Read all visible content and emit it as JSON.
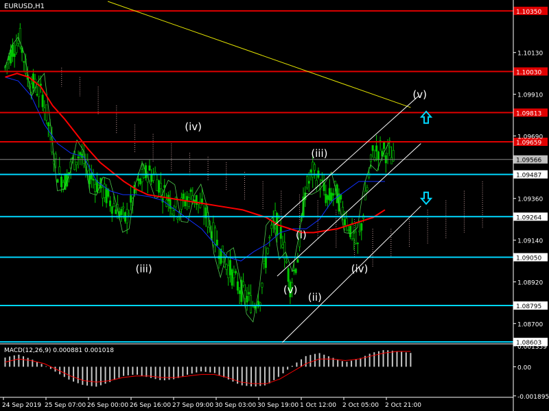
{
  "window": {
    "symbol_tf": "EURUSD,H1"
  },
  "colors": {
    "background": "#000000",
    "candle": "#00c800",
    "grid": "#ffffff",
    "resistance": "#e00000",
    "support": "#00d8ff",
    "price_label": "#c0c0c0",
    "trend_yellow": "#e6e600",
    "ma_red": "#ff0000",
    "ma_blue": "#1030ff",
    "ichimoku_cloud": "#c8a0a0",
    "macd_hist": "#c8c8c8",
    "macd_signal": "#ff0000"
  },
  "price_axis": {
    "min": 1.086,
    "max": 1.104,
    "ticks": [
      "1.10130",
      "1.09910",
      "1.09690",
      "1.09360",
      "1.09140",
      "1.08920",
      "1.08700"
    ]
  },
  "levels": {
    "resistance": [
      {
        "label": "1.10350",
        "price": 1.1035
      },
      {
        "label": "1.10030",
        "price": 1.1003
      },
      {
        "label": "1.09813",
        "price": 1.09813
      },
      {
        "label": "1.09659",
        "price": 1.09659
      }
    ],
    "support": [
      {
        "label": "1.09487",
        "price": 1.09487
      },
      {
        "label": "1.09264",
        "price": 1.09264
      },
      {
        "label": "1.09050",
        "price": 1.0905
      },
      {
        "label": "1.08795",
        "price": 1.08795
      },
      {
        "label": "1.08603",
        "price": 1.08603
      }
    ],
    "current": {
      "label": "1.09566",
      "price": 1.09566
    }
  },
  "wave_labels": [
    {
      "text": "(iii)",
      "x": 22,
      "price": 1.0897
    },
    {
      "text": "(iv)",
      "x": 30,
      "price": 1.0972
    },
    {
      "text": "(v)",
      "x": 46,
      "price": 1.0886
    },
    {
      "text": "(i)",
      "x": 48,
      "price": 1.0915
    },
    {
      "text": "(ii)",
      "x": 50,
      "price": 1.0882
    },
    {
      "text": "(iii)",
      "x": 50.5,
      "price": 1.0958
    },
    {
      "text": "(iv)",
      "x": 57,
      "price": 1.0897
    },
    {
      "text": "(v)",
      "x": 67,
      "price": 1.0989
    }
  ],
  "arrows": [
    {
      "direction": "up",
      "x": 67.5,
      "price": 1.0979
    },
    {
      "direction": "down",
      "x": 67.5,
      "price": 1.0936
    }
  ],
  "macd": {
    "title": "MACD(12,26,9) 0.000881 0.001018",
    "ticks": [
      "0.001359",
      "0.00",
      "-0.001895"
    ],
    "min": -0.0019,
    "max": 0.0014
  },
  "time_axis": {
    "labels": [
      "24 Sep 2019",
      "25 Sep 07:00",
      "26 Sep 00:00",
      "26 Sep 16:00",
      "27 Sep 09:00",
      "30 Sep 03:00",
      "30 Sep 19:00",
      "1 Oct 12:00",
      "2 Oct 05:00",
      "2 Oct 21:00"
    ]
  },
  "chart_data": {
    "type": "candlestick",
    "symbol": "EURUSD",
    "timeframe": "H1",
    "ylim": [
      1.086,
      1.104
    ],
    "close_path": [
      1.1005,
      1.1015,
      1.102,
      1.1,
      1.0995,
      1.099,
      1.097,
      1.095,
      1.0945,
      1.0955,
      1.096,
      1.095,
      1.0945,
      1.094,
      1.0935,
      1.093,
      1.0925,
      1.0935,
      1.0945,
      1.095,
      1.0948,
      1.094,
      1.0935,
      1.093,
      1.0935,
      1.0938,
      1.0932,
      1.0925,
      1.0915,
      1.0905,
      1.0898,
      1.089,
      1.0885,
      1.088,
      1.0885,
      1.091,
      1.0925,
      1.0915,
      1.089,
      1.0905,
      1.094,
      1.095,
      1.0945,
      1.0935,
      1.094,
      1.093,
      1.092,
      1.091,
      1.0935,
      1.096,
      1.0962,
      1.096,
      1.0955
    ],
    "red_ma": [
      1.1,
      1.1002,
      1.1,
      1.0995,
      1.0985,
      1.0978,
      1.097,
      1.0962,
      1.0955,
      1.095,
      1.0945,
      1.0941,
      1.0938,
      1.0937,
      1.0936,
      1.0935,
      1.0934,
      1.0933,
      1.0932,
      1.0931,
      1.093,
      1.0928,
      1.0926,
      1.0922,
      1.092,
      1.0918,
      1.0918,
      1.0919,
      1.092,
      1.0922,
      1.0924,
      1.0926,
      1.093
    ],
    "blue_ma": [
      1.1,
      1.0998,
      1.099,
      1.0975,
      1.0965,
      1.096,
      1.0958,
      1.0945,
      1.094,
      1.0938,
      1.0938,
      1.0937,
      1.0935,
      1.093,
      1.0925,
      1.092,
      1.0912,
      1.0905,
      1.0903,
      1.0908,
      1.0912,
      1.0918,
      1.092,
      1.092,
      1.0925,
      1.0935,
      1.094,
      1.0945,
      1.0945,
      1.0945
    ],
    "macd_hist": [
      0.0006,
      0.0008,
      0.0005,
      0.0001,
      -0.0004,
      -0.0009,
      -0.0012,
      -0.0013,
      -0.001,
      -0.0006,
      -0.0005,
      -0.0007,
      -0.0009,
      -0.0008,
      -0.0005,
      -0.0003,
      -0.0004,
      -0.0008,
      -0.0012,
      -0.0013,
      -0.0012,
      -0.0006,
      0.0001,
      0.0007,
      0.0009,
      0.0006,
      0.0003,
      0.0005,
      0.0009,
      0.0011,
      0.001,
      0.0009
    ],
    "macd_signal": [
      0.0003,
      0.0005,
      0.0004,
      0.0002,
      -0.0002,
      -0.0006,
      -0.0009,
      -0.001,
      -0.0009,
      -0.0007,
      -0.0006,
      -0.0006,
      -0.0007,
      -0.0007,
      -0.0006,
      -0.0005,
      -0.0005,
      -0.0007,
      -0.001,
      -0.0011,
      -0.0011,
      -0.0008,
      -0.0003,
      0.0002,
      0.0005,
      0.0005,
      0.0004,
      0.0005,
      0.0007,
      0.0009,
      0.001,
      0.001
    ]
  }
}
